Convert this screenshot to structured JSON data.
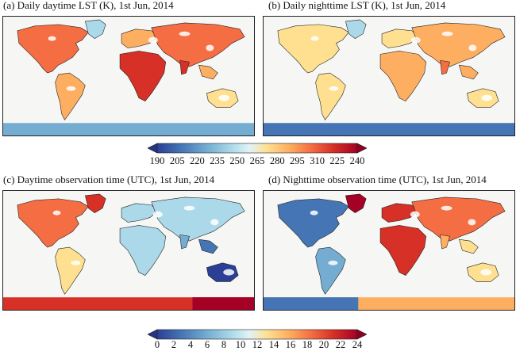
{
  "panels": [
    {
      "title": "(a) Daily daytime LST (K), 1st Jun,  2014",
      "variant": "day-lst"
    },
    {
      "title": "(b) Daily nighttime LST (K), 1st Jun, 2014",
      "variant": "night-lst"
    },
    {
      "title": "(c) Daytime observation time (UTC),  1st Jun,  2014",
      "variant": "day-time"
    },
    {
      "title": "(d) Nighttime observation time (UTC),  1st Jun,  2014",
      "variant": "night-time"
    }
  ],
  "colorbars": [
    {
      "ticks": [
        "190",
        "205",
        "220",
        "235",
        "250",
        "265",
        "280",
        "295",
        "310",
        "225",
        "240"
      ]
    },
    {
      "ticks": [
        "0",
        "2",
        "4",
        "6",
        "8",
        "10",
        "12",
        "14",
        "16",
        "18",
        "20",
        "22",
        "24"
      ]
    }
  ],
  "colors": {
    "ocean": "#f6f6f4",
    "scale": [
      "#2b3f96",
      "#4575b4",
      "#74add1",
      "#abd9e9",
      "#e0f3f8",
      "#fee090",
      "#fdae61",
      "#f46d43",
      "#d73027",
      "#a50026"
    ]
  }
}
